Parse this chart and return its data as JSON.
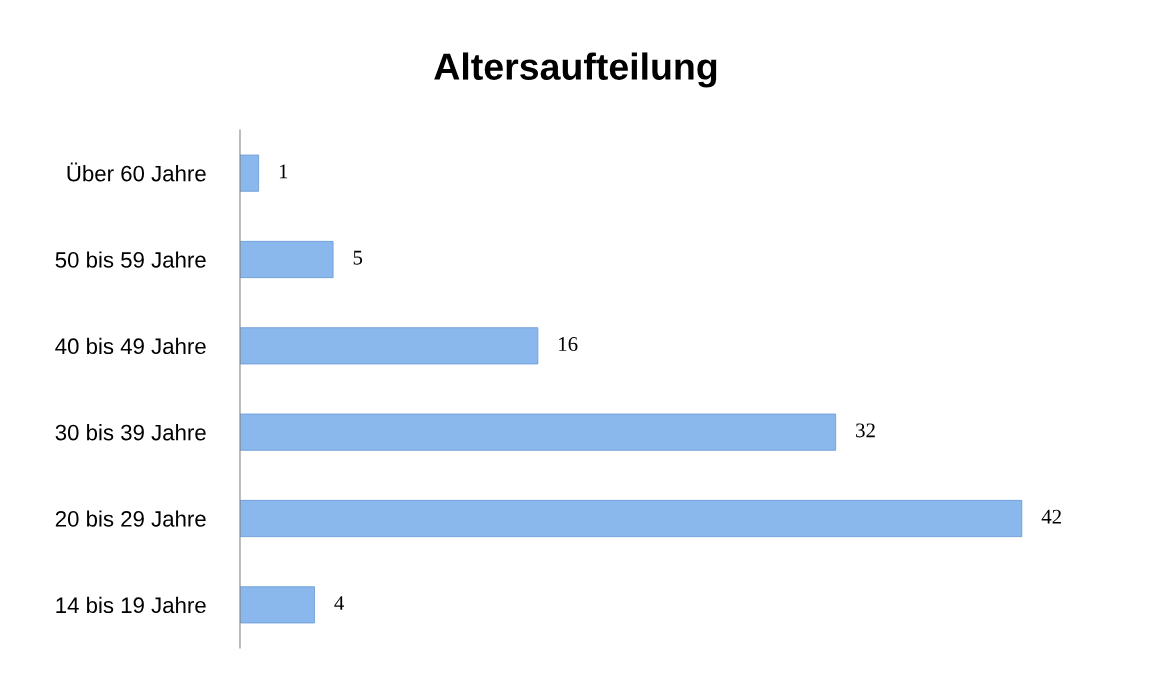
{
  "chart_data": {
    "type": "bar",
    "orientation": "horizontal",
    "title": "Altersaufteilung",
    "categories": [
      "Über 60 Jahre",
      "50 bis 59 Jahre",
      "40 bis 49 Jahre",
      "30 bis 39 Jahre",
      "20 bis 29 Jahre",
      "14 bis 19 Jahre"
    ],
    "values": [
      1,
      5,
      16,
      32,
      42,
      4
    ],
    "color": "#8ab8ec",
    "data_labels": true,
    "grid": false,
    "tick_labels": "y"
  }
}
